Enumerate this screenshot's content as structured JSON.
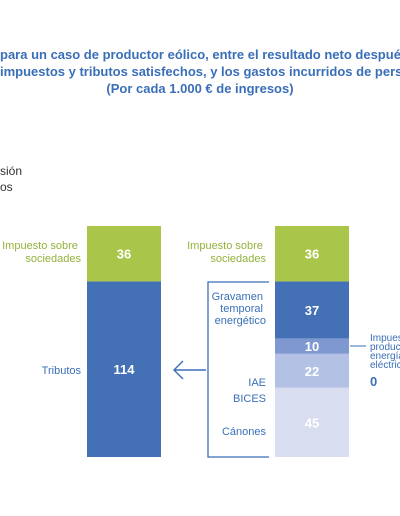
{
  "title": {
    "line1": "para un caso de productor eólico, entre el resultado neto después",
    "line2": "impuestos y tributos satisfechos, y los gastos incurridos de perso",
    "line3": "(Por cada 1.000 € de ingresos)"
  },
  "legend": {
    "frag1": "sión",
    "frag2": "os"
  },
  "colors": {
    "green": "#a9c64a",
    "dark_blue": "#4470b6",
    "mid_blue": "#7f98cf",
    "light_blue": "#b3c2e4",
    "lightest_blue": "#d8deef",
    "label_blue": "#3a6fb8",
    "label_green": "#93b23c"
  },
  "chart_data": {
    "type": "bar",
    "stacked": true,
    "ylim": [
      0,
      150
    ],
    "bars": [
      {
        "segments": [
          {
            "label": "Tributos",
            "value": 114,
            "value_label": "114",
            "color": "#4470b6"
          },
          {
            "label": "Impuesto sobre sociedades",
            "value": 36,
            "value_label": "36",
            "color": "#a9c64a"
          }
        ]
      },
      {
        "segments": [
          {
            "label": "Cánones",
            "value": 45,
            "value_label": "45",
            "color": "#d8deef"
          },
          {
            "label": "BICES",
            "value": 0,
            "value_label": "",
            "color": "#d8deef"
          },
          {
            "label": "IAE",
            "value": 22,
            "value_label": "22",
            "color": "#b3c2e4"
          },
          {
            "label": "Impuesto producción energía eléctrica",
            "value": 10,
            "value_label": "10",
            "color": "#7f98cf"
          },
          {
            "label": "Gravamen temporal energético",
            "value": 37,
            "value_label": "37",
            "color": "#4470b6"
          },
          {
            "label": "Impuesto sobre sociedades",
            "value": 36,
            "value_label": "36",
            "color": "#a9c64a"
          }
        ]
      }
    ],
    "left_labels": {
      "iss": [
        "Impuesto sobre",
        "sociedades"
      ],
      "tributos": "Tributos"
    },
    "right_labels": {
      "iss": [
        "Impuesto sobre",
        "sociedades"
      ],
      "gravamen": [
        "Gravamen",
        "temporal",
        "energético"
      ],
      "iae": "IAE",
      "bices": "BICES",
      "canones": "Cánones",
      "ipee": [
        "Impuest",
        "producc",
        "energía",
        "eléctric"
      ],
      "ipee_value": "0"
    }
  }
}
